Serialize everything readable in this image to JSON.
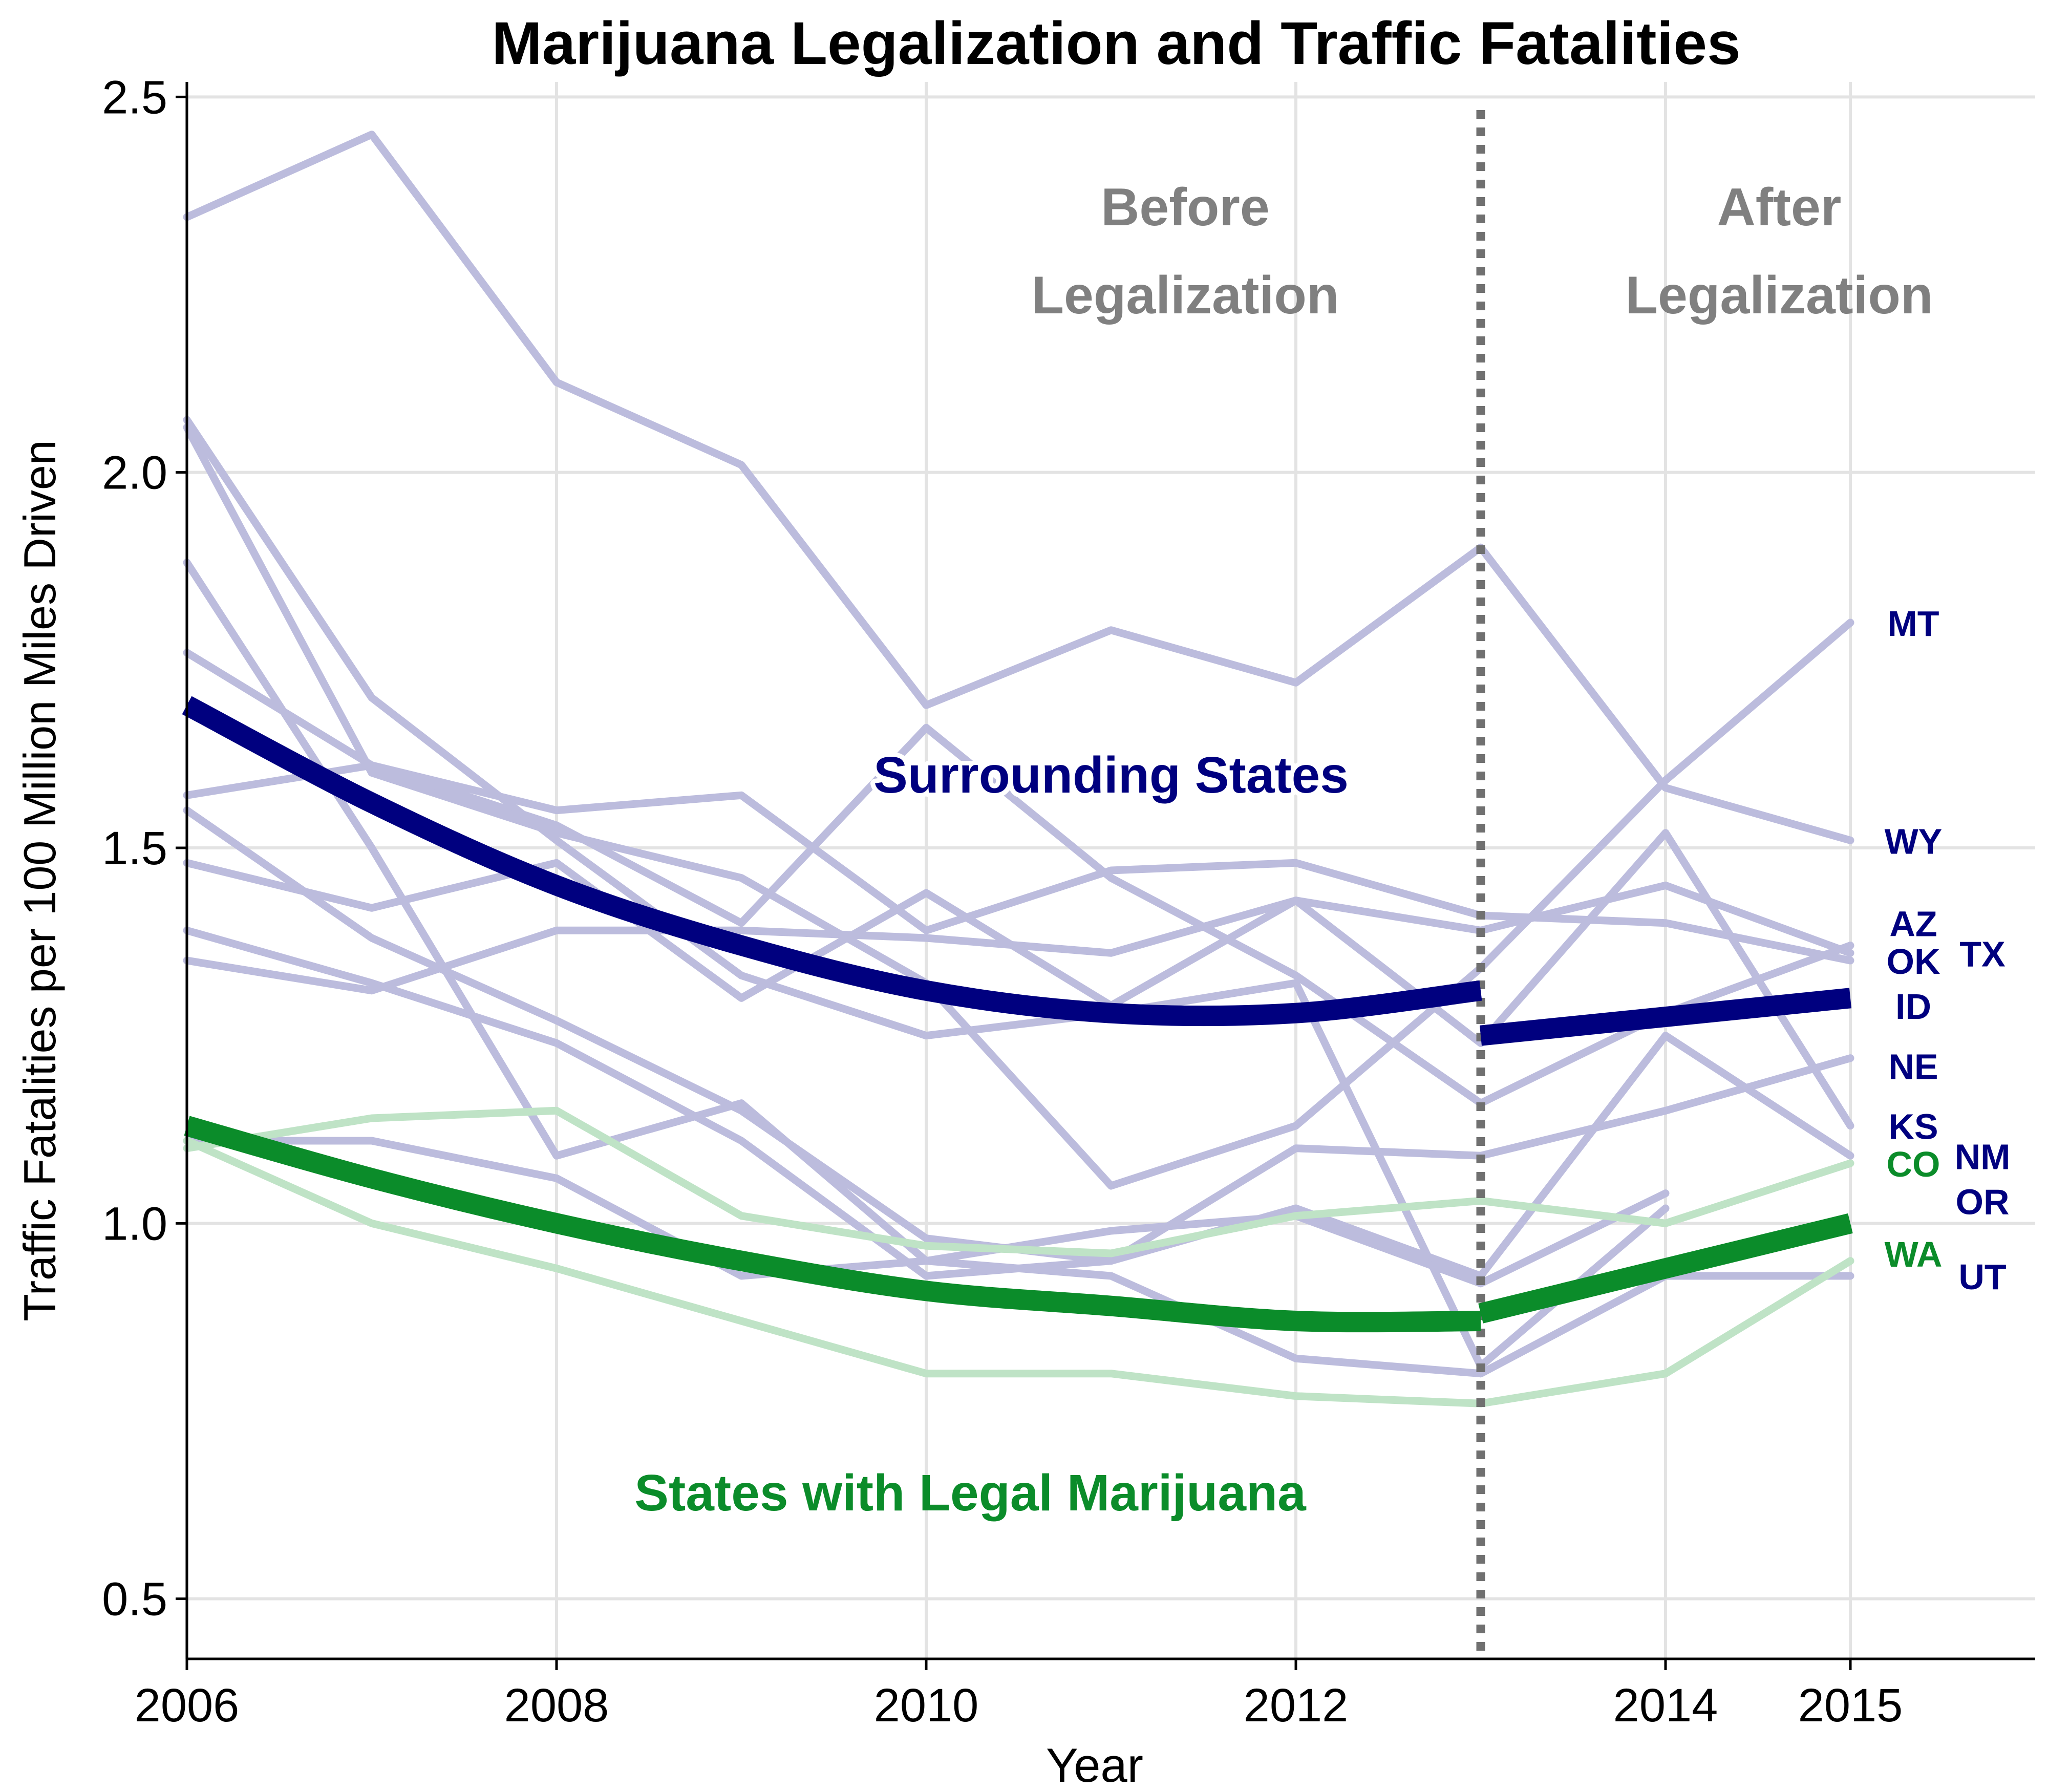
{
  "colors": {
    "surrounding": "#00007f",
    "legal": "#0b8c2a",
    "surrounding_faint": "#bcbcdd",
    "legal_faint": "#bfe3c6",
    "grid": "#e3e3e3",
    "annotation": "#808080",
    "cutoff_line": "#707070"
  },
  "chart_data": {
    "type": "line",
    "title": "Marijuana Legalization and Traffic Fatalities",
    "xlabel": "Year",
    "ylabel": "Traffic Fatalities per 100 Million Miles Driven",
    "xlim": [
      2006,
      2016
    ],
    "ylim": [
      0.42,
      2.52
    ],
    "x_ticks": [
      2006,
      2008,
      2010,
      2012,
      2014,
      2015
    ],
    "x_tick_labels": [
      "2006",
      "2008",
      "2010",
      "2012",
      "2014",
      "2015"
    ],
    "y_ticks": [
      0.5,
      1.0,
      1.5,
      2.0,
      2.5
    ],
    "y_tick_labels": [
      "0.5",
      "1.0",
      "1.5",
      "2.0",
      "2.5"
    ],
    "grid": true,
    "legalization_year": 2013,
    "period_labels": {
      "before": [
        "Before",
        "Legalization"
      ],
      "after": [
        "After",
        "Legalization"
      ]
    },
    "group_labels": {
      "surrounding": "Surrounding States",
      "legal": "States with Legal Marijuana"
    },
    "years": [
      2006,
      2007,
      2008,
      2009,
      2010,
      2011,
      2012,
      2013,
      2014,
      2015
    ],
    "surrounding_states": [
      {
        "name": "MT",
        "values": [
          2.34,
          2.45,
          2.12,
          2.01,
          1.69,
          1.79,
          1.72,
          1.9,
          1.58,
          1.51
        ]
      },
      {
        "name": "WY",
        "values": [
          2.06,
          1.6,
          1.52,
          1.46,
          1.32,
          1.05,
          1.13,
          1.34,
          1.59,
          1.8
        ]
      },
      {
        "name": "AZ",
        "values": [
          1.57,
          1.61,
          1.55,
          1.57,
          1.39,
          1.47,
          1.48,
          1.41,
          1.4,
          1.35
        ]
      },
      {
        "name": "OK",
        "values": [
          1.48,
          1.42,
          1.48,
          1.3,
          1.44,
          1.29,
          1.43,
          1.24,
          1.52,
          1.13
        ]
      },
      {
        "name": "TX",
        "values": [
          1.35,
          1.31,
          1.39,
          1.39,
          1.38,
          1.36,
          1.43,
          1.39,
          1.45,
          1.36
        ]
      },
      {
        "name": "ID",
        "values": [
          1.39,
          1.32,
          1.24,
          1.11,
          0.93,
          0.95,
          1.1,
          1.09,
          1.15,
          1.22
        ]
      },
      {
        "name": "NE",
        "values": [
          1.55,
          1.38,
          1.27,
          1.15,
          0.98,
          0.95,
          1.02,
          0.93,
          1.25,
          1.09
        ]
      },
      {
        "name": "KS",
        "values": [
          1.76,
          1.61,
          1.53,
          1.4,
          1.66,
          1.46,
          1.33,
          1.16,
          1.28,
          1.37
        ]
      },
      {
        "name": "NM",
        "values": [
          2.07,
          1.7,
          1.51,
          1.33,
          1.25,
          1.28,
          1.32,
          0.81,
          1.02,
          null
        ]
      },
      {
        "name": "OR",
        "values": [
          1.11,
          1.11,
          1.06,
          0.93,
          0.95,
          0.93,
          0.82,
          0.8,
          0.93,
          0.93
        ]
      },
      {
        "name": "UT",
        "values": [
          1.88,
          1.5,
          1.09,
          1.16,
          0.95,
          0.99,
          1.01,
          0.92,
          1.04,
          null
        ]
      }
    ],
    "legal_states": [
      {
        "name": "CO",
        "values": [
          1.1,
          1.14,
          1.15,
          1.01,
          0.97,
          0.96,
          1.01,
          1.03,
          1.0,
          1.08
        ]
      },
      {
        "name": "WA",
        "values": [
          1.11,
          1.0,
          0.94,
          0.87,
          0.8,
          0.8,
          0.77,
          0.76,
          0.8,
          0.95
        ]
      }
    ],
    "fit_surrounding_before": {
      "x": [
        2006,
        2007,
        2008,
        2009,
        2010,
        2011,
        2012,
        2013
      ],
      "y": [
        1.69,
        1.56,
        1.45,
        1.37,
        1.31,
        1.28,
        1.28,
        1.31
      ]
    },
    "fit_surrounding_after": {
      "x": [
        2013,
        2015
      ],
      "y": [
        1.25,
        1.3
      ]
    },
    "fit_legal_before": {
      "x": [
        2006,
        2007,
        2008,
        2009,
        2010,
        2011,
        2012,
        2013
      ],
      "y": [
        1.13,
        1.06,
        1.0,
        0.95,
        0.91,
        0.89,
        0.87,
        0.87
      ]
    },
    "fit_legal_after": {
      "x": [
        2013,
        2015
      ],
      "y": [
        0.88,
        1.0
      ]
    },
    "state_labels": [
      {
        "name": "MT",
        "group": "surrounding",
        "col": 1,
        "y": 1.8
      },
      {
        "name": "WY",
        "group": "surrounding",
        "col": 1,
        "y": 1.51
      },
      {
        "name": "AZ",
        "group": "surrounding",
        "col": 1,
        "y": 1.4
      },
      {
        "name": "OK",
        "group": "surrounding",
        "col": 1,
        "y": 1.35
      },
      {
        "name": "TX",
        "group": "surrounding",
        "col": 2,
        "y": 1.36
      },
      {
        "name": "ID",
        "group": "surrounding",
        "col": 1,
        "y": 1.29
      },
      {
        "name": "NE",
        "group": "surrounding",
        "col": 1,
        "y": 1.21
      },
      {
        "name": "KS",
        "group": "surrounding",
        "col": 1,
        "y": 1.13
      },
      {
        "name": "CO",
        "group": "legal",
        "col": 1,
        "y": 1.08
      },
      {
        "name": "NM",
        "group": "surrounding",
        "col": 2,
        "y": 1.09
      },
      {
        "name": "OR",
        "group": "surrounding",
        "col": 2,
        "y": 1.03
      },
      {
        "name": "WA",
        "group": "legal",
        "col": 1,
        "y": 0.96
      },
      {
        "name": "UT",
        "group": "surrounding",
        "col": 2,
        "y": 0.93
      }
    ]
  }
}
